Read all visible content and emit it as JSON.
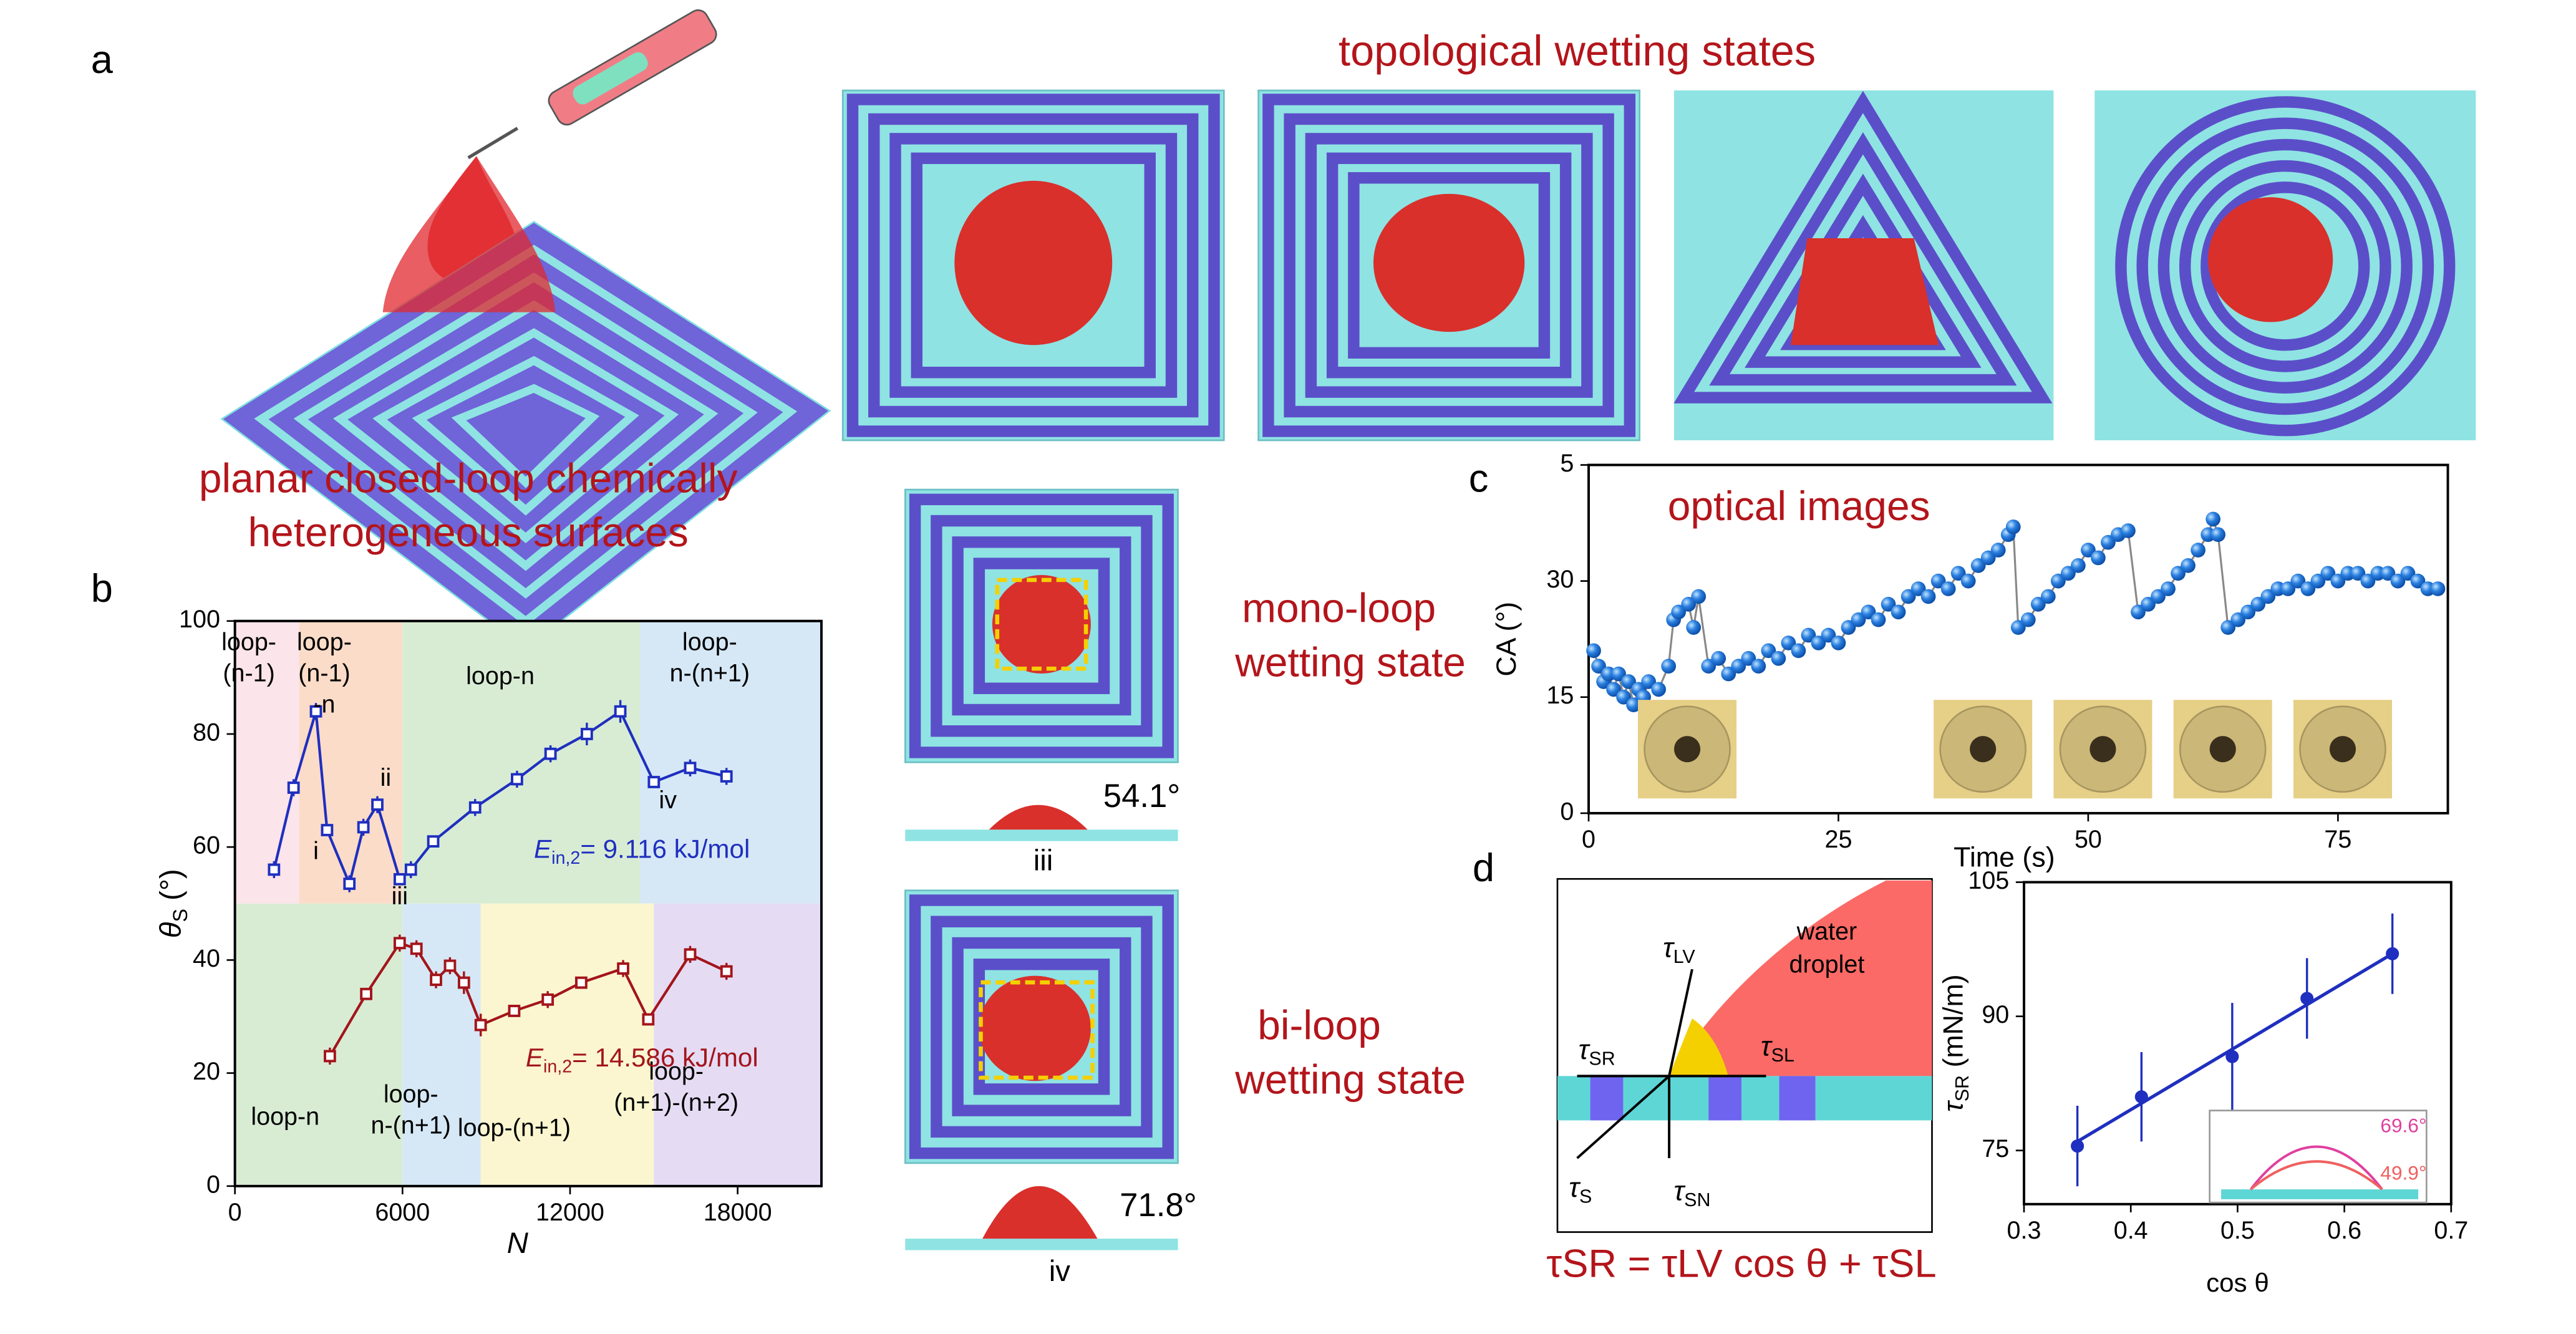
{
  "panel_labels": [
    "a",
    "b",
    "c",
    "d"
  ],
  "panel_a": {
    "title": "topological wetting states",
    "caption": [
      "planar closed-loop chemically",
      "heterogeneous surfaces"
    ]
  },
  "panel_middle": {
    "mono": [
      "mono-loop",
      "wetting state"
    ],
    "bi": [
      "bi-loop",
      "wetting state"
    ],
    "angle_mono": "54.1°",
    "angle_bi": "71.8°",
    "state_mono": "iii",
    "state_bi": "iv"
  },
  "chart_data": [
    {
      "type": "line",
      "xlabel": "N",
      "ylabel": {
        "symbol": "θ",
        "sub": "S",
        "unit": " (°)"
      },
      "xlim": [
        0,
        21000
      ],
      "ylim": [
        0,
        100
      ],
      "xticks": [
        0,
        6000,
        12000,
        18000
      ],
      "yticks": [
        0,
        20,
        40,
        60,
        80,
        100
      ],
      "series": [
        {
          "color": "#1f2fbf",
          "x": [
            1400,
            2100,
            2900,
            3300,
            4100,
            4600,
            5100,
            5900,
            6300,
            7100,
            8600,
            10100,
            11300,
            12600,
            13800,
            15000,
            16300,
            17600
          ],
          "values": [
            56,
            70.5,
            84,
            63,
            53.5,
            63.5,
            67.5,
            54.3,
            56,
            61,
            67,
            72,
            76.5,
            80,
            84,
            71.5,
            74,
            72.5
          ],
          "errors": [
            1.5,
            1.5,
            1.5,
            1,
            1.5,
            1.5,
            1.5,
            1,
            1.5,
            1,
            1.5,
            1.5,
            1.5,
            2,
            2,
            1,
            1.5,
            1.5
          ]
        },
        {
          "color": "#a3151b",
          "x": [
            3400,
            4700,
            5900,
            6500,
            7200,
            7700,
            8200,
            8800,
            10000,
            11200,
            12400,
            13900,
            14800,
            16300,
            17600
          ],
          "values": [
            23,
            34,
            43,
            42,
            36.5,
            39,
            36,
            28.5,
            31,
            33,
            36,
            38.5,
            29.5,
            41,
            38
          ],
          "errors": [
            1.5,
            1,
            1.5,
            1.5,
            1.5,
            1.5,
            2,
            2,
            1,
            1.5,
            1,
            1.5,
            1,
            1.5,
            1.5
          ]
        }
      ],
      "annotations": [
        {
          "lines": [
            "loop-",
            "(n-1)"
          ],
          "x": 500,
          "y": 96
        },
        {
          "lines": [
            "loop-",
            "(n-1)",
            "-n"
          ],
          "x": 3200,
          "y": 96
        },
        {
          "lines": [
            "loop-n"
          ],
          "x": 9500,
          "y": 90
        },
        {
          "lines": [
            "loop-",
            "n-(n+1)"
          ],
          "x": 17000,
          "y": 96
        },
        {
          "lines": [
            "loop-n"
          ],
          "x": 1800,
          "y": 12
        },
        {
          "lines": [
            "loop-",
            "n-(n+1)"
          ],
          "x": 6300,
          "y": 16
        },
        {
          "lines": [
            "loop-(n+1)"
          ],
          "x": 10000,
          "y": 10
        },
        {
          "lines": [
            "loop-",
            "(n+1)-(n+2)"
          ],
          "x": 15800,
          "y": 20
        },
        {
          "lines": [
            "i"
          ],
          "x": 2900,
          "y": 59
        },
        {
          "lines": [
            "ii"
          ],
          "x": 5400,
          "y": 72
        },
        {
          "lines": [
            "iii"
          ],
          "x": 5900,
          "y": 51
        },
        {
          "lines": [
            "iv"
          ],
          "x": 15500,
          "y": 68
        }
      ],
      "energy": [
        {
          "symbol": "E",
          "sub": "in,2",
          "text": "= 9.116 kJ/mol"
        },
        {
          "symbol": "E",
          "sub": "in,2",
          "text": "= 14.586 kJ/mol"
        }
      ]
    },
    {
      "type": "scatter",
      "xlabel": "Time (s)",
      "ylabel": "CA (°)",
      "annotation": "optical images",
      "xlim": [
        0,
        86
      ],
      "ylim": [
        0,
        45
      ],
      "xticks": [
        0,
        25,
        50,
        75
      ],
      "yticks": [
        0,
        15,
        30,
        {
          "value": 45,
          "label": "5"
        }
      ],
      "color": "#2a7fe0",
      "x": [
        0.5,
        1,
        1.5,
        2,
        2.5,
        3,
        3.5,
        4,
        4.5,
        5,
        5.5,
        6,
        7,
        8,
        8.5,
        9,
        10,
        10.5,
        11,
        12,
        13,
        14,
        15,
        16,
        17,
        18,
        19,
        20,
        21,
        22,
        23,
        24,
        25,
        26,
        27,
        28,
        29,
        30,
        31,
        32,
        33,
        34,
        35,
        36,
        37,
        38,
        39,
        40,
        41,
        42,
        42.5,
        43,
        44,
        45,
        46,
        47,
        48,
        49,
        50,
        51,
        52,
        53,
        54,
        55,
        56,
        57,
        58,
        59,
        60,
        61,
        62,
        62.5,
        63,
        64,
        65,
        66,
        67,
        68,
        69,
        70,
        71,
        72,
        73,
        74,
        75,
        76,
        77,
        78,
        79,
        80,
        81,
        82,
        83,
        84,
        85
      ],
      "values": [
        21,
        19,
        17,
        18,
        16,
        18,
        15,
        17,
        14,
        16,
        15,
        17,
        16,
        19,
        25,
        26,
        27,
        24,
        28,
        19,
        20,
        18,
        19,
        20,
        19,
        21,
        20,
        22,
        21,
        23,
        22,
        23,
        22,
        24,
        25,
        26,
        25,
        27,
        26,
        28,
        29,
        28,
        30,
        29,
        31,
        30,
        32,
        33,
        34,
        36,
        37,
        24,
        25,
        27,
        28,
        30,
        31,
        32,
        34,
        33,
        35,
        36,
        36.5,
        26,
        27,
        28,
        29,
        31,
        32,
        34,
        36,
        38,
        36,
        24,
        25,
        26,
        27,
        28,
        29,
        29,
        30,
        29,
        30,
        31,
        30,
        31,
        31,
        30,
        31,
        31,
        30,
        31,
        30,
        29,
        29
      ]
    },
    {
      "type": "scatter",
      "xlabel": "cos θ",
      "ylabel": {
        "symbol": "τ",
        "sub": "SR",
        "unit": " (mN/m)"
      },
      "xlim": [
        0.3,
        0.7
      ],
      "ylim": [
        69,
        105
      ],
      "xticks": [
        0.3,
        0.4,
        0.5,
        0.6,
        0.7
      ],
      "yticks": [
        75,
        90,
        105
      ],
      "color": "#1f2fbf",
      "x": [
        0.35,
        0.41,
        0.495,
        0.565,
        0.645
      ],
      "values": [
        75.5,
        81,
        85.5,
        92,
        97
      ],
      "errors": [
        4.5,
        5,
        6,
        4.5,
        4.5
      ],
      "fit": {
        "x": [
          0.35,
          0.645
        ],
        "values": [
          76,
          97
        ]
      },
      "inset": [
        "69.6°",
        "49.9°"
      ]
    }
  ],
  "panel_d_diagram": {
    "droplet": [
      "water",
      "droplet"
    ],
    "tau": [
      {
        "symbol": "τ",
        "sub": "LV"
      },
      {
        "symbol": "τ",
        "sub": "SR"
      },
      {
        "symbol": "τ",
        "sub": "SL"
      },
      {
        "symbol": "τ",
        "sub": "S"
      },
      {
        "symbol": "τ",
        "sub": "SN"
      }
    ],
    "equation": "τSR = τLV cos θ + τSL"
  }
}
